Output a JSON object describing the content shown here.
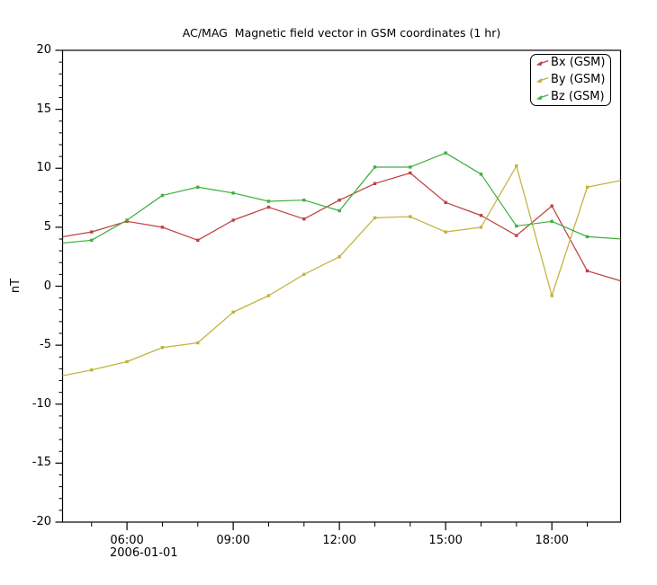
{
  "title": "AC/MAG  Magnetic field vector in GSM coordinates (1 hr)",
  "chart_data": {
    "type": "line",
    "title": "AC/MAG  Magnetic field vector in GSM coordinates (1 hr)",
    "xlabel": "",
    "ylabel": "nT",
    "x_date_label": "2006-01-01",
    "x_unit": "hour of day",
    "x": [
      4,
      5,
      6,
      7,
      8,
      9,
      10,
      11,
      12,
      13,
      14,
      15,
      16,
      17,
      18,
      19,
      20
    ],
    "series": [
      {
        "name": "Bx (GSM)",
        "color": "#bf4140",
        "values": [
          4.1,
          4.6,
          5.5,
          5.0,
          3.9,
          5.6,
          6.7,
          5.7,
          7.3,
          8.7,
          9.6,
          7.1,
          6.0,
          4.3,
          6.8,
          1.3,
          0.4
        ]
      },
      {
        "name": "By (GSM)",
        "color": "#c1b23b",
        "values": [
          -7.7,
          -7.1,
          -6.4,
          -5.2,
          -4.8,
          -2.2,
          -0.8,
          1.0,
          2.5,
          5.8,
          5.9,
          4.6,
          5.0,
          10.2,
          -0.8,
          8.4,
          9.0
        ]
      },
      {
        "name": "Bz (GSM)",
        "color": "#41af41",
        "values": [
          3.6,
          3.9,
          5.6,
          7.7,
          8.4,
          7.9,
          7.2,
          7.3,
          6.4,
          10.1,
          10.1,
          11.3,
          9.5,
          5.1,
          5.5,
          4.2,
          4.0
        ]
      }
    ],
    "xlim": [
      4.18,
      19.94
    ],
    "ylim": [
      -20,
      20
    ],
    "y_major_ticks": [
      -20,
      -15,
      -10,
      -5,
      0,
      5,
      10,
      15,
      20
    ],
    "y_major_labels": [
      "-20",
      "-15",
      "-10",
      "-5",
      "0",
      "5",
      "10",
      "15",
      "20"
    ],
    "y_minor_step": 1,
    "x_major_ticks": [
      6,
      9,
      12,
      15,
      18
    ],
    "x_major_labels": [
      "06:00",
      "09:00",
      "12:00",
      "15:00",
      "18:00"
    ],
    "x_minor_ticks": [
      5,
      7,
      8,
      10,
      11,
      13,
      14,
      16,
      17,
      19
    ],
    "grid": false,
    "legend_position": "top-right",
    "axis_color": "#000000",
    "background": "#ffffff"
  }
}
